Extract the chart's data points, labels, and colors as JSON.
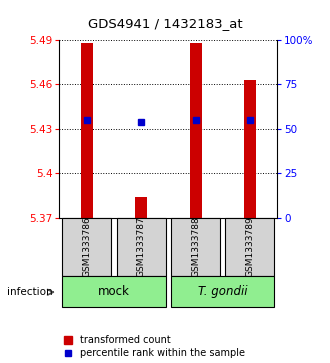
{
  "title": "GDS4941 / 1432183_at",
  "samples": [
    "GSM1333786",
    "GSM1333787",
    "GSM1333788",
    "GSM1333789"
  ],
  "bar_values": [
    5.488,
    5.384,
    5.488,
    5.463
  ],
  "percentile_ranks": [
    55,
    54,
    55,
    55
  ],
  "ymin": 5.37,
  "ymax": 5.49,
  "yticks_left": [
    5.37,
    5.4,
    5.43,
    5.46,
    5.49
  ],
  "yticks_right": [
    0,
    25,
    50,
    75,
    100
  ],
  "bar_color": "#CC0000",
  "dot_color": "#0000CC",
  "bar_width": 0.22,
  "legend_bar_label": "transformed count",
  "legend_dot_label": "percentile rank within the sample",
  "infection_label": "infection",
  "mock_label": "mock",
  "tg_label": "T. gondii",
  "group_color": "#90EE90",
  "sample_bg": "#D3D3D3"
}
